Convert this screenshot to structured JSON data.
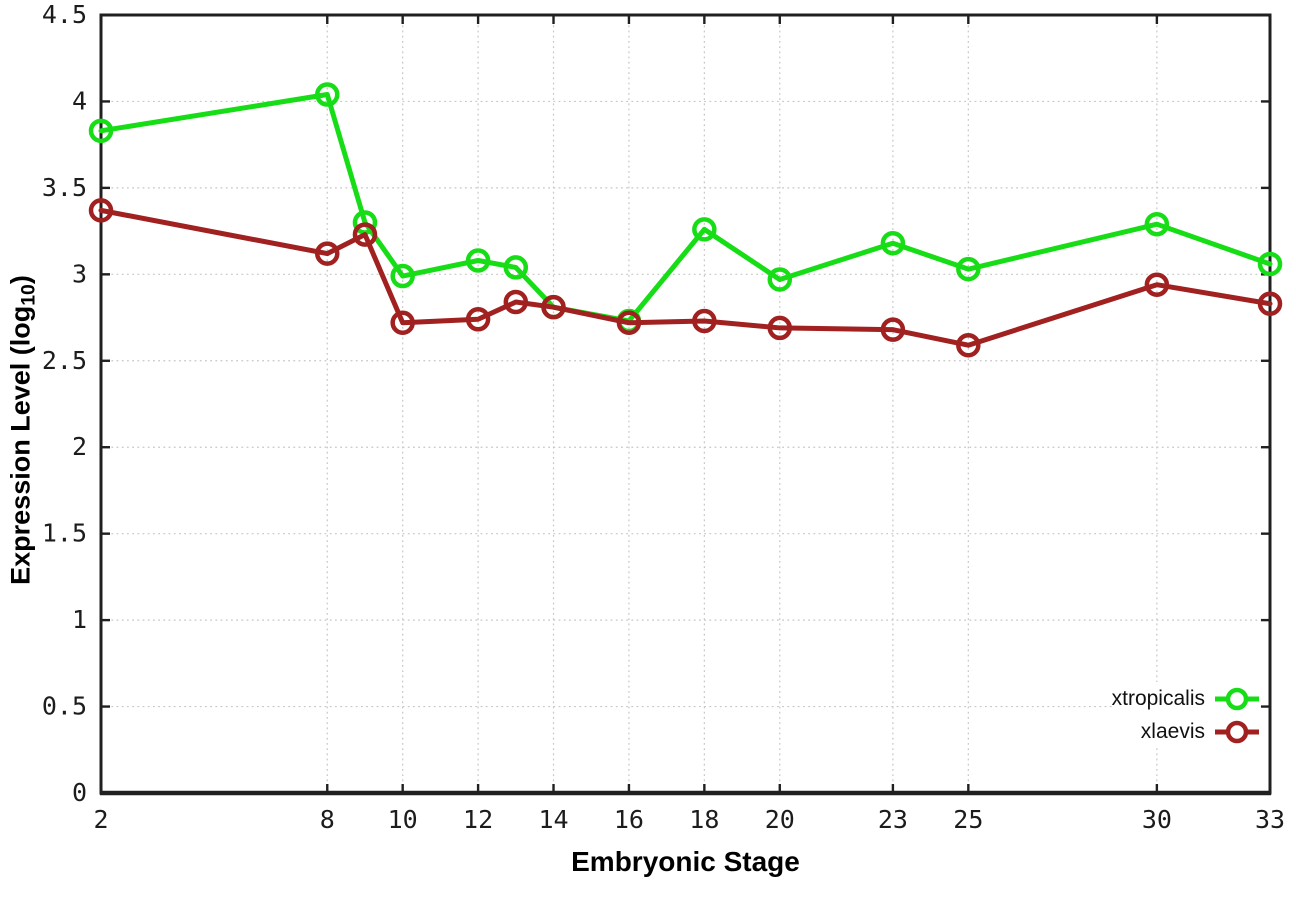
{
  "chart_data": {
    "type": "line",
    "title": "",
    "xlabel": "Embryonic Stage",
    "ylabel": "Expression Level (log10)",
    "ylabel_parts": {
      "main": "Expression Level (log",
      "sub": "10",
      "suffix": ")"
    },
    "xlim": [
      2,
      33
    ],
    "ylim": [
      0,
      4.5
    ],
    "grid": true,
    "legend_position": "bottom-right",
    "x_ticks": [
      2,
      8,
      10,
      12,
      14,
      16,
      18,
      20,
      23,
      25,
      30,
      33
    ],
    "y_ticks": [
      {
        "value": 0,
        "label": "0"
      },
      {
        "value": 0.5,
        "label": "0.5"
      },
      {
        "value": 1,
        "label": "1"
      },
      {
        "value": 1.5,
        "label": "1.5"
      },
      {
        "value": 2,
        "label": "2"
      },
      {
        "value": 2.5,
        "label": "2.5"
      },
      {
        "value": 3,
        "label": "3"
      },
      {
        "value": 3.5,
        "label": "3.5"
      },
      {
        "value": 4,
        "label": "4"
      },
      {
        "value": 4.5,
        "label": "4.5"
      }
    ],
    "x": [
      2,
      8,
      9,
      10,
      12,
      13,
      14,
      16,
      18,
      20,
      23,
      25,
      30,
      33
    ],
    "series": [
      {
        "name": "xtropicalis",
        "color": "#17dd17",
        "marker": "open-circle",
        "values": [
          3.83,
          4.04,
          3.3,
          2.99,
          3.08,
          3.04,
          2.81,
          2.73,
          3.26,
          2.97,
          3.18,
          3.03,
          3.29,
          3.06
        ]
      },
      {
        "name": "xlaevis",
        "color": "#a12020",
        "marker": "open-circle",
        "values": [
          3.37,
          3.12,
          3.23,
          2.72,
          2.74,
          2.84,
          2.81,
          2.72,
          2.73,
          2.69,
          2.68,
          2.59,
          2.94,
          2.83
        ]
      }
    ]
  }
}
